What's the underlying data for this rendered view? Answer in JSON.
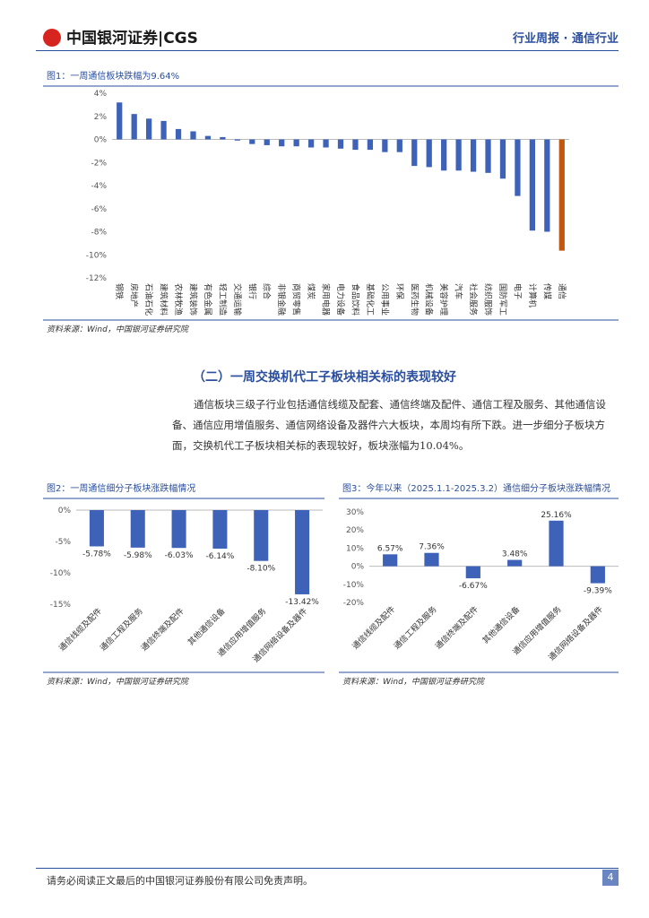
{
  "header": {
    "logo": "中国银河证券|CGS",
    "right": "行业周报 · 通信行业"
  },
  "section_title": "（二）一周交换机代工子板块相关标的表现较好",
  "paragraph": "通信板块三级子行业包括通信线缆及配套、通信终端及配件、通信工程及服务、其他通信设备、通信应用增值服务、通信网络设备及器件六大板块，本周均有所下跌。进一步细分子板块方面，交换机代工子板块相关标的表现较好，板块涨幅为10.04%。",
  "footer": {
    "disclaimer": "请务必阅读正文最后的中国银河证券股份有限公司免责声明。",
    "page": "4"
  },
  "chart_data": [
    {
      "type": "bar",
      "title": "图1：一周通信板块跌幅为9.64%",
      "source": "资料来源：Wind，中国银河证券研究院",
      "categories": [
        "钢铁",
        "房地产",
        "石油石化",
        "建筑材料",
        "农林牧渔",
        "建筑装饰",
        "有色金属",
        "轻工制造",
        "交通运输",
        "银行",
        "综合",
        "非银金融",
        "商贸零售",
        "煤炭",
        "家用电器",
        "电力设备",
        "食品饮料",
        "基础化工",
        "公用事业",
        "环保",
        "医药生物",
        "机械设备",
        "美容护理",
        "汽车",
        "社会服务",
        "纺织服饰",
        "国防军工",
        "电子",
        "计算机",
        "传媒",
        "通信"
      ],
      "values": [
        3.2,
        2.2,
        1.8,
        1.6,
        0.9,
        0.7,
        0.3,
        0.2,
        -0.1,
        -0.4,
        -0.5,
        -0.6,
        -0.6,
        -0.7,
        -0.7,
        -0.8,
        -0.9,
        -0.9,
        -1.1,
        -1.1,
        -2.3,
        -2.4,
        -2.7,
        -2.7,
        -2.8,
        -2.9,
        -3.4,
        -4.9,
        -7.9,
        -8.0,
        -9.64
      ],
      "colors": [
        "#3d62b8",
        "#3d62b8",
        "#3d62b8",
        "#3d62b8",
        "#3d62b8",
        "#3d62b8",
        "#3d62b8",
        "#3d62b8",
        "#3d62b8",
        "#3d62b8",
        "#3d62b8",
        "#3d62b8",
        "#3d62b8",
        "#3d62b8",
        "#3d62b8",
        "#3d62b8",
        "#3d62b8",
        "#3d62b8",
        "#3d62b8",
        "#3d62b8",
        "#3d62b8",
        "#3d62b8",
        "#3d62b8",
        "#3d62b8",
        "#3d62b8",
        "#3d62b8",
        "#3d62b8",
        "#3d62b8",
        "#3d62b8",
        "#3d62b8",
        "#c0590f"
      ],
      "ylim": [
        -12,
        4
      ],
      "yticks": [
        {
          "value": 4,
          "label": "4%"
        },
        {
          "value": 2,
          "label": "2%"
        },
        {
          "value": 0,
          "label": "0%"
        },
        {
          "value": -2,
          "label": "-2%"
        },
        {
          "value": -4,
          "label": "-4%"
        },
        {
          "value": -6,
          "label": "-6%"
        },
        {
          "value": -8,
          "label": "-8%"
        },
        {
          "value": -10,
          "label": "-10%"
        },
        {
          "value": -12,
          "label": "-12%"
        }
      ]
    },
    {
      "type": "bar",
      "title": "图2：一周通信细分子板块涨跌幅情况",
      "source": "资料来源：Wind，中国银河证券研究院",
      "categories": [
        "通信线缆及配件",
        "通信工程及服务",
        "通信终端及配件",
        "其他通信设备",
        "通信应用增值服务",
        "通信网络设备及器件"
      ],
      "values": [
        -5.78,
        -5.98,
        -6.03,
        -6.14,
        -8.1,
        -13.42
      ],
      "value_labels": [
        "-5.78%",
        "-5.98%",
        "-6.03%",
        "-6.14%",
        "-8.10%",
        "-13.42%"
      ],
      "color": "#3d62b8",
      "ylim": [
        -15,
        0
      ],
      "yticks": [
        {
          "value": 0,
          "label": "0%"
        },
        {
          "value": -5,
          "label": "-5%"
        },
        {
          "value": -10,
          "label": "-10%"
        },
        {
          "value": -15,
          "label": "-15%"
        }
      ]
    },
    {
      "type": "bar",
      "title": "图3：今年以来（2025.1.1-2025.3.2）通信细分子板块涨跌幅情况",
      "source": "资料来源：Wind，中国银河证券研究院",
      "categories": [
        "通信线缆及配件",
        "通信工程及服务",
        "通信终端及配件",
        "其他通信设备",
        "通信应用增值服务",
        "通信网络设备及器件"
      ],
      "values": [
        6.57,
        7.36,
        -6.67,
        3.48,
        25.16,
        -9.39
      ],
      "value_labels": [
        "6.57%",
        "7.36%",
        "-6.67%",
        "3.48%",
        "25.16%",
        "-9.39%"
      ],
      "color": "#3d62b8",
      "ylim": [
        -20,
        30
      ],
      "yticks": [
        {
          "value": 30,
          "label": "30%"
        },
        {
          "value": 20,
          "label": "20%"
        },
        {
          "value": 10,
          "label": "10%"
        },
        {
          "value": 0,
          "label": "0%"
        },
        {
          "value": -10,
          "label": "-10%"
        },
        {
          "value": -20,
          "label": "-20%"
        }
      ]
    }
  ]
}
